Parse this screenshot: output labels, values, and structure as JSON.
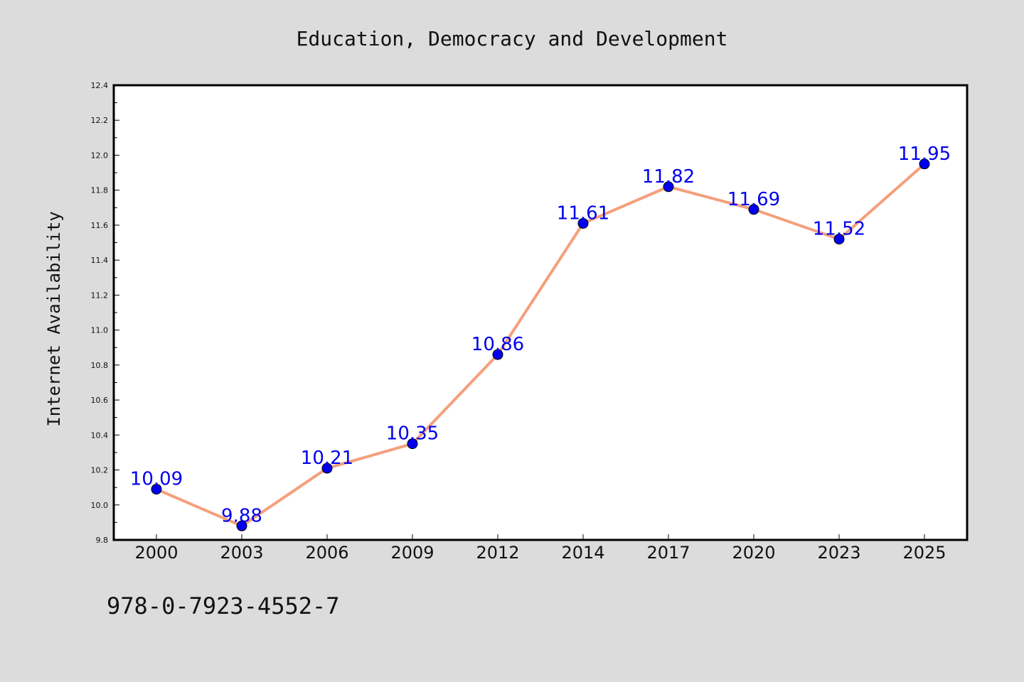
{
  "chart_data": {
    "type": "line",
    "title": "Education, Democracy and Development",
    "xlabel": "",
    "ylabel": "Internet Availability",
    "categories": [
      "2000",
      "2003",
      "2006",
      "2009",
      "2012",
      "2014",
      "2017",
      "2020",
      "2023",
      "2025"
    ],
    "series": [
      {
        "values": [
          10.09,
          9.88,
          10.21,
          10.35,
          10.86,
          11.61,
          11.82,
          11.69,
          11.52,
          11.95
        ],
        "labels": [
          "10.09",
          "9.88",
          "10.21",
          "10.35",
          "10.86",
          "11.61",
          "11.82",
          "11.69",
          "11.52",
          "11.95"
        ]
      }
    ],
    "ylim": [
      9.8,
      12.4
    ],
    "yticks": [
      "9.8",
      "10.0",
      "10.2",
      "10.4",
      "10.6",
      "10.8",
      "11.0",
      "11.2",
      "11.4",
      "11.6",
      "11.8",
      "12.0",
      "12.2",
      "12.4"
    ],
    "grid": false,
    "colors": {
      "background": "#dcdcdc",
      "plot_background": "#ffffff",
      "line": "#f4a07c",
      "marker": "#0000ee",
      "label": "#0000ee"
    }
  },
  "footer_text": "978-0-7923-4552-7"
}
